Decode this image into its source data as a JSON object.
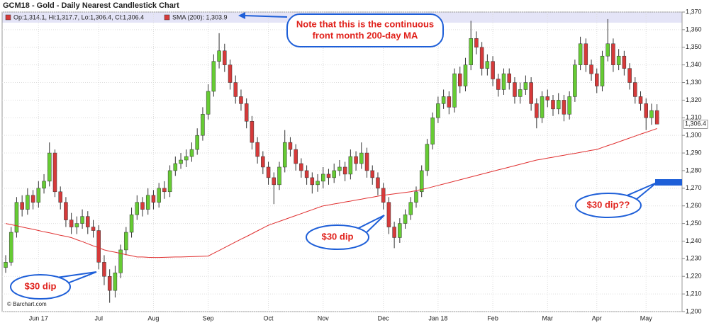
{
  "chart_data": {
    "type": "candlestick",
    "title": "GCM18 - Gold - Daily Nearest Candlestick Chart",
    "ohlc_legend": "Op:1,314.1, Hi:1,317.7, Lo:1,306.4, Cl:1,306.4",
    "sma_legend": "SMA (200): 1,303.9",
    "credit": "© Barchart.com",
    "up_color": "#66cc33",
    "down_color": "#d63a3a",
    "categories": [
      null,
      null,
      null,
      null,
      null,
      null,
      "Jun 17",
      null,
      null,
      null,
      null,
      null,
      null,
      null,
      null,
      null,
      null,
      "Jul",
      null,
      null,
      null,
      null,
      null,
      null,
      null,
      null,
      null,
      "Aug",
      null,
      null,
      null,
      null,
      null,
      null,
      null,
      null,
      null,
      "Sep",
      null,
      null,
      null,
      null,
      null,
      null,
      null,
      null,
      null,
      null,
      "Oct",
      null,
      null,
      null,
      null,
      null,
      null,
      null,
      null,
      null,
      "Nov",
      null,
      null,
      null,
      null,
      null,
      null,
      null,
      null,
      null,
      null,
      "Dec",
      null,
      null,
      null,
      null,
      null,
      null,
      null,
      null,
      null,
      "Jan 18",
      null,
      null,
      null,
      null,
      null,
      null,
      null,
      null,
      null,
      "Feb",
      null,
      null,
      null,
      null,
      null,
      null,
      null,
      null,
      null,
      "Mar",
      null,
      null,
      null,
      null,
      null,
      null,
      null,
      null,
      "Apr",
      null,
      null,
      null,
      null,
      null,
      null,
      null,
      null,
      "May",
      null,
      null
    ],
    "open": [
      1225,
      1228,
      1245,
      1262,
      1258,
      1266,
      1262,
      1270,
      1274,
      1290,
      1268,
      1262,
      1252,
      1248,
      1250,
      1254,
      1248,
      1246,
      1228,
      1220,
      1212,
      1222,
      1235,
      1245,
      1255,
      1262,
      1258,
      1266,
      1262,
      1270,
      1268,
      1280,
      1284,
      1286,
      1288,
      1292,
      1300,
      1312,
      1325,
      1342,
      1348,
      1340,
      1330,
      1322,
      1318,
      1308,
      1296,
      1288,
      1282,
      1276,
      1272,
      1282,
      1296,
      1292,
      1284,
      1280,
      1276,
      1272,
      1274,
      1278,
      1276,
      1280,
      1282,
      1278,
      1288,
      1284,
      1290,
      1280,
      1276,
      1270,
      1262,
      1248,
      1242,
      1250,
      1255,
      1262,
      1268,
      1280,
      1295,
      1310,
      1318,
      1322,
      1316,
      1335,
      1328,
      1340,
      1355,
      1350,
      1338,
      1342,
      1332,
      1326,
      1335,
      1330,
      1322,
      1326,
      1330,
      1318,
      1310,
      1322,
      1320,
      1315,
      1320,
      1312,
      1322,
      1340,
      1352,
      1340,
      1335,
      1328,
      1345,
      1352,
      1340,
      1345,
      1338,
      1330,
      1322,
      1318,
      1310,
      1314.1
    ],
    "high": [
      1232,
      1248,
      1265,
      1266,
      1270,
      1269,
      1274,
      1278,
      1296,
      1292,
      1271,
      1265,
      1256,
      1254,
      1258,
      1257,
      1252,
      1249,
      1232,
      1224,
      1226,
      1238,
      1248,
      1259,
      1266,
      1265,
      1270,
      1269,
      1273,
      1274,
      1283,
      1288,
      1290,
      1292,
      1296,
      1304,
      1316,
      1329,
      1346,
      1358,
      1352,
      1343,
      1334,
      1326,
      1321,
      1311,
      1299,
      1291,
      1285,
      1279,
      1285,
      1303,
      1299,
      1295,
      1287,
      1283,
      1279,
      1278,
      1282,
      1281,
      1284,
      1286,
      1285,
      1292,
      1291,
      1296,
      1293,
      1283,
      1279,
      1273,
      1265,
      1251,
      1253,
      1258,
      1265,
      1271,
      1283,
      1298,
      1313,
      1322,
      1326,
      1325,
      1338,
      1339,
      1344,
      1365,
      1359,
      1353,
      1346,
      1345,
      1335,
      1338,
      1338,
      1333,
      1330,
      1334,
      1333,
      1321,
      1325,
      1326,
      1323,
      1324,
      1323,
      1325,
      1343,
      1356,
      1355,
      1343,
      1338,
      1348,
      1366,
      1355,
      1349,
      1348,
      1341,
      1333,
      1325,
      1321,
      1318,
      1317.7
    ],
    "low": [
      1222,
      1226,
      1242,
      1254,
      1255,
      1258,
      1259,
      1267,
      1271,
      1265,
      1258,
      1248,
      1244,
      1244,
      1247,
      1244,
      1242,
      1224,
      1215,
      1205,
      1208,
      1219,
      1232,
      1242,
      1252,
      1254,
      1255,
      1258,
      1259,
      1264,
      1265,
      1277,
      1281,
      1282,
      1285,
      1289,
      1297,
      1309,
      1322,
      1338,
      1336,
      1326,
      1318,
      1314,
      1304,
      1292,
      1284,
      1278,
      1272,
      1261,
      1269,
      1279,
      1288,
      1280,
      1276,
      1272,
      1267,
      1268,
      1270,
      1272,
      1273,
      1277,
      1274,
      1275,
      1280,
      1281,
      1276,
      1272,
      1266,
      1258,
      1244,
      1236,
      1239,
      1247,
      1252,
      1259,
      1265,
      1277,
      1292,
      1307,
      1315,
      1312,
      1313,
      1324,
      1325,
      1337,
      1346,
      1334,
      1334,
      1328,
      1322,
      1323,
      1326,
      1318,
      1318,
      1323,
      1314,
      1304,
      1307,
      1316,
      1311,
      1312,
      1308,
      1309,
      1319,
      1337,
      1336,
      1331,
      1324,
      1325,
      1342,
      1336,
      1337,
      1334,
      1326,
      1318,
      1314,
      1303,
      1306,
      1306.4
    ],
    "close": [
      1228,
      1245,
      1262,
      1258,
      1266,
      1262,
      1270,
      1274,
      1290,
      1268,
      1262,
      1252,
      1248,
      1250,
      1254,
      1248,
      1246,
      1228,
      1220,
      1212,
      1222,
      1235,
      1245,
      1255,
      1262,
      1258,
      1266,
      1262,
      1270,
      1268,
      1280,
      1284,
      1286,
      1288,
      1292,
      1300,
      1312,
      1325,
      1342,
      1348,
      1340,
      1330,
      1322,
      1318,
      1308,
      1296,
      1288,
      1282,
      1276,
      1272,
      1282,
      1296,
      1292,
      1284,
      1280,
      1276,
      1272,
      1274,
      1278,
      1276,
      1280,
      1282,
      1278,
      1288,
      1284,
      1290,
      1280,
      1276,
      1270,
      1262,
      1248,
      1242,
      1250,
      1255,
      1262,
      1268,
      1280,
      1295,
      1310,
      1318,
      1322,
      1316,
      1335,
      1328,
      1340,
      1355,
      1350,
      1338,
      1342,
      1332,
      1326,
      1335,
      1330,
      1322,
      1326,
      1330,
      1318,
      1310,
      1322,
      1320,
      1315,
      1320,
      1312,
      1322,
      1340,
      1352,
      1340,
      1335,
      1328,
      1345,
      1352,
      1340,
      1345,
      1338,
      1330,
      1322,
      1318,
      1310,
      1314.1,
      1306.4
    ],
    "close_value_labels": {
      "119": "1,306.4"
    },
    "sma": {
      "color": "#e03030",
      "values": [
        1250,
        1249.3,
        1248.7,
        1248,
        1247.3,
        1246.7,
        1246,
        1245.3,
        1244.7,
        1244,
        1243.3,
        1242.7,
        1242,
        1240.8,
        1239.7,
        1238.5,
        1237.3,
        1236.2,
        1235,
        1234.3,
        1233.7,
        1233,
        1232.3,
        1231.7,
        1231,
        1231,
        1230.8,
        1230.7,
        1230.7,
        1230.8,
        1230.9,
        1231,
        1231,
        1231.1,
        1231.2,
        1231.3,
        1231.4,
        1231.5,
        1233.1,
        1234.7,
        1236.3,
        1237.9,
        1239.5,
        1241.1,
        1242.6,
        1244.2,
        1245.8,
        1247.4,
        1249,
        1250.1,
        1251.2,
        1252.3,
        1253.4,
        1254.5,
        1255.6,
        1256.7,
        1257.8,
        1258.9,
        1260,
        1260.5,
        1261.1,
        1261.6,
        1262.2,
        1262.7,
        1263.3,
        1263.8,
        1264.4,
        1264.9,
        1265.5,
        1266,
        1266.4,
        1266.8,
        1267.2,
        1267.6,
        1268,
        1268.7,
        1269.3,
        1270,
        1270.8,
        1271.6,
        1272.4,
        1273.2,
        1274,
        1274.8,
        1275.6,
        1276.4,
        1277.2,
        1278,
        1278.8,
        1279.6,
        1280.4,
        1281.2,
        1282,
        1282.8,
        1283.6,
        1284.4,
        1285.2,
        1286,
        1286.5,
        1287.1,
        1287.6,
        1288.2,
        1288.7,
        1289.3,
        1289.8,
        1290.4,
        1290.9,
        1291.5,
        1292,
        1293.1,
        1294.2,
        1295.2,
        1296.3,
        1297.4,
        1298.5,
        1299.6,
        1300.7,
        1301.7,
        1302.8,
        1303.9
      ]
    },
    "ylim": [
      1200,
      1370
    ],
    "yticks": [
      {
        "value": 1200,
        "label": "1,200"
      },
      {
        "value": 1210,
        "label": "1,210"
      },
      {
        "value": 1220,
        "label": "1,220"
      },
      {
        "value": 1230,
        "label": "1,230"
      },
      {
        "value": 1240,
        "label": "1,240"
      },
      {
        "value": 1250,
        "label": "1,250"
      },
      {
        "value": 1260,
        "label": "1,260"
      },
      {
        "value": 1270,
        "label": "1,270"
      },
      {
        "value": 1280,
        "label": "1,280"
      },
      {
        "value": 1290,
        "label": "1,290"
      },
      {
        "value": 1300,
        "label": "1,300"
      },
      {
        "value": 1310,
        "label": "1,310"
      },
      {
        "value": 1320,
        "label": "1,320"
      },
      {
        "value": 1330,
        "label": "1,330"
      },
      {
        "value": 1340,
        "label": "1,340"
      },
      {
        "value": 1350,
        "label": "1,350"
      },
      {
        "value": 1360,
        "label": "1,360"
      },
      {
        "value": 1370,
        "label": "1,370"
      }
    ],
    "grid": true,
    "annotations": [
      {
        "lines": [
          "Note that this is the continuous",
          "front month 200-day MA"
        ]
      },
      {
        "lines": [
          "$30 dip"
        ]
      },
      {
        "lines": [
          "$30 dip"
        ]
      },
      {
        "lines": [
          "$30 dip??"
        ]
      }
    ]
  }
}
